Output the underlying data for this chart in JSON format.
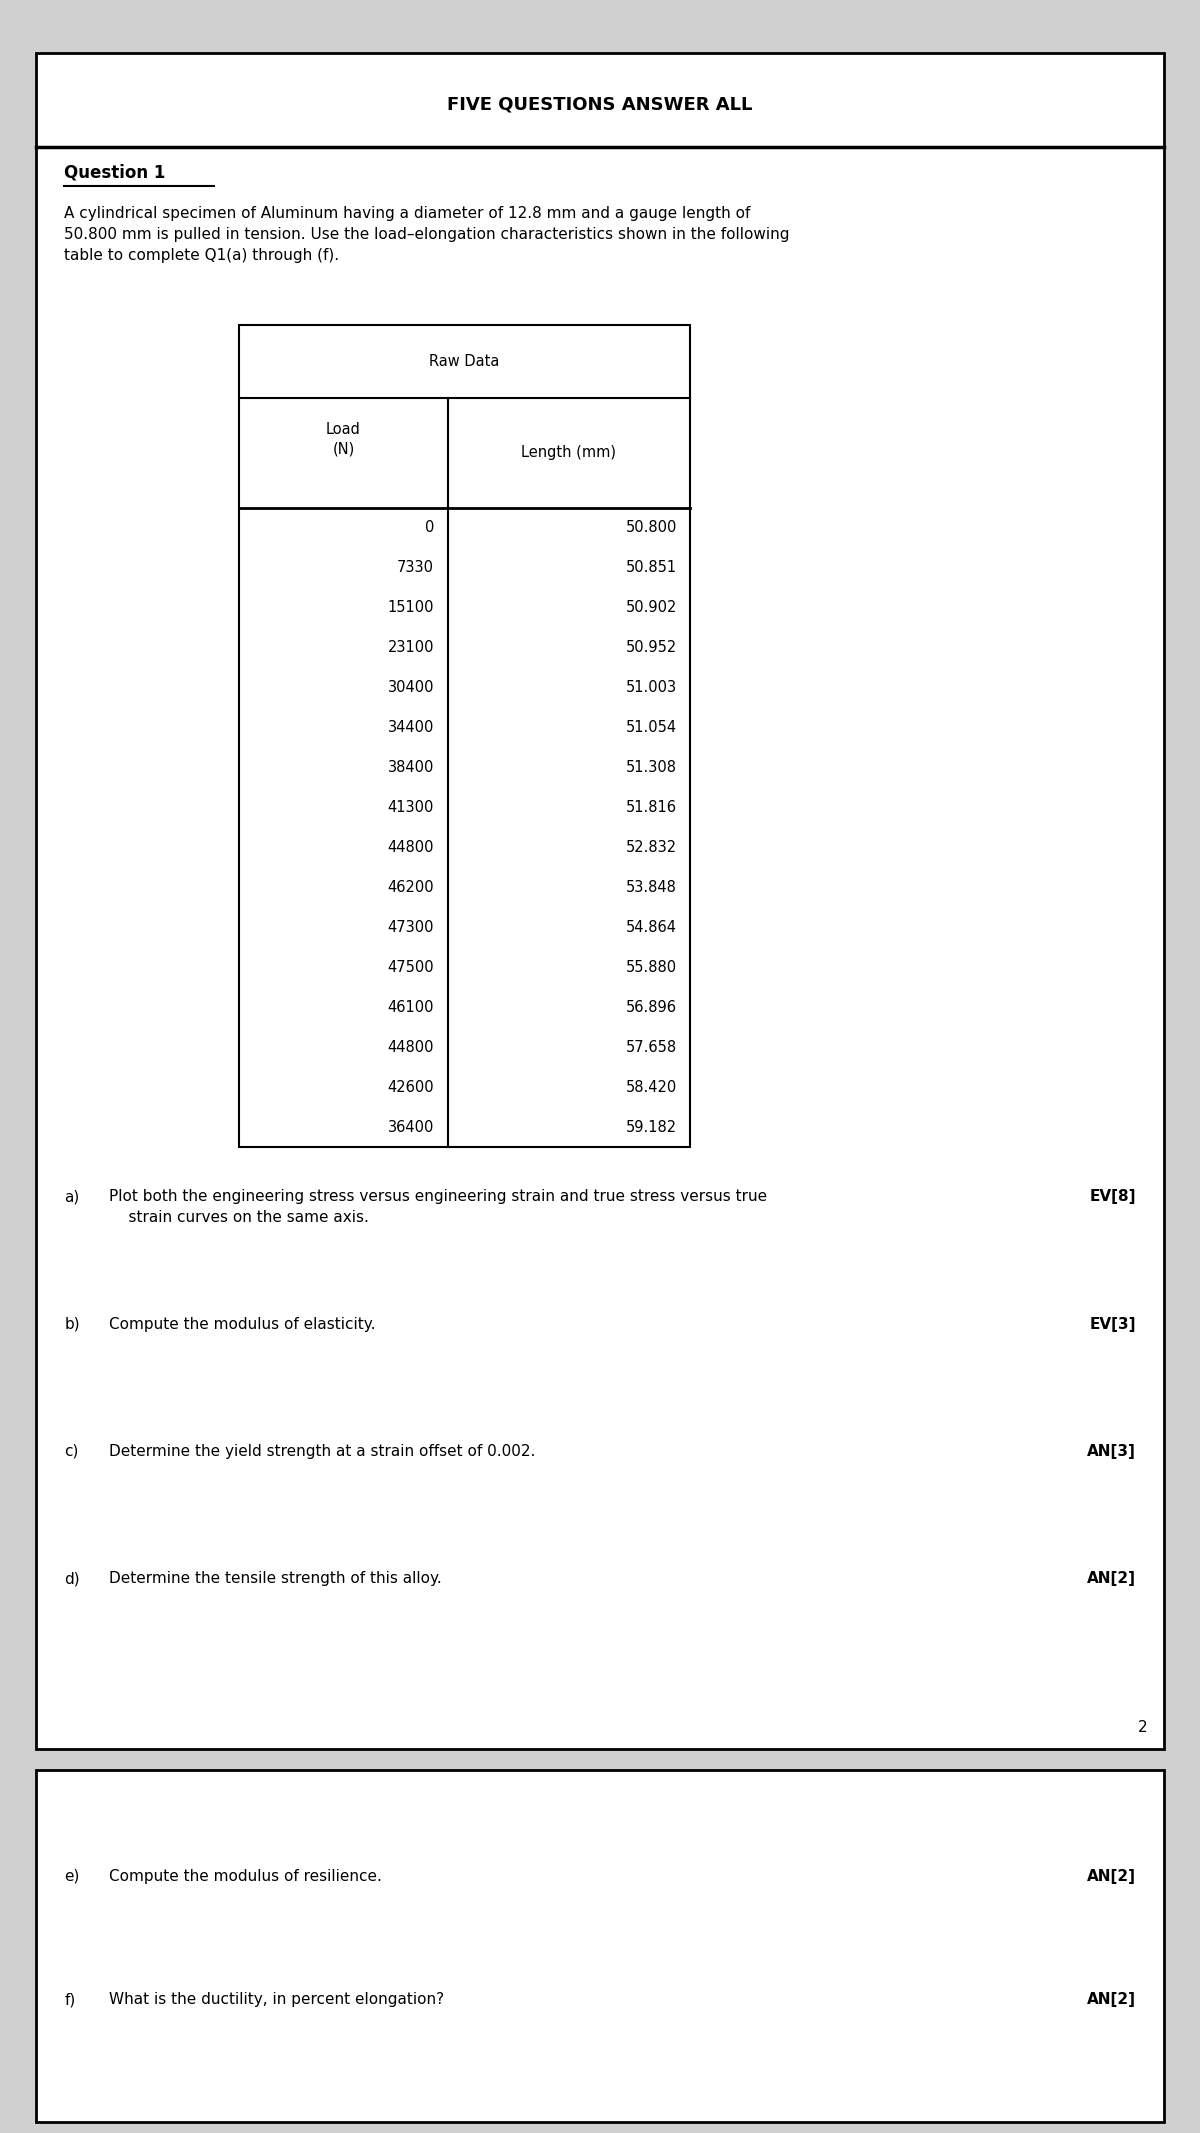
{
  "title": "FIVE QUESTIONS ANSWER ALL",
  "question_label": "Question 1",
  "intro_text": "A cylindrical specimen of Aluminum having a diameter of 12.8 mm and a gauge length of\n50.800 mm is pulled in tension. Use the load–elongation characteristics shown in the following\ntable to complete Q1(a) through (f).",
  "table_title": "Raw Data",
  "col_headers": [
    "Load\n(N)",
    "Length (mm)"
  ],
  "table_data": [
    [
      0,
      50.8
    ],
    [
      7330,
      50.851
    ],
    [
      15100,
      50.902
    ],
    [
      23100,
      50.952
    ],
    [
      30400,
      51.003
    ],
    [
      34400,
      51.054
    ],
    [
      38400,
      51.308
    ],
    [
      41300,
      51.816
    ],
    [
      44800,
      52.832
    ],
    [
      46200,
      53.848
    ],
    [
      47300,
      54.864
    ],
    [
      47500,
      55.88
    ],
    [
      46100,
      56.896
    ],
    [
      44800,
      57.658
    ],
    [
      42600,
      58.42
    ],
    [
      36400,
      59.182
    ]
  ],
  "questions_page1": [
    {
      "label": "a)",
      "text": "Plot both the engineering stress versus engineering strain and true stress versus true\n    strain curves on the same axis.",
      "mark": "EV[8]"
    },
    {
      "label": "b)",
      "text": "Compute the modulus of elasticity.",
      "mark": "EV[3]"
    },
    {
      "label": "c)",
      "text": "Determine the yield strength at a strain offset of 0.002.",
      "mark": "AN[3]"
    },
    {
      "label": "d)",
      "text": "Determine the tensile strength of this alloy.",
      "mark": "AN[2]"
    }
  ],
  "page_number_1": "2",
  "questions_page2": [
    {
      "label": "e)",
      "text": "Compute the modulus of resilience.",
      "mark": "AN[2]"
    },
    {
      "label": "f)",
      "text": "What is the ductility, in percent elongation?",
      "mark": "AN[2]"
    }
  ],
  "bg_color": "#ffffff",
  "box_border_color": "#000000",
  "text_color": "#000000",
  "font_size_title": 13,
  "font_size_body": 11,
  "font_size_table": 10.5
}
